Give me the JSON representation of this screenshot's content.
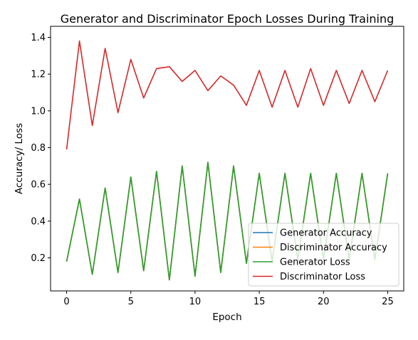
{
  "chart_data": {
    "type": "line",
    "title": "Generator and Discriminator Epoch Losses During Training",
    "xlabel": "Epoch",
    "ylabel": "Accuracy/ Loss",
    "xlim": [
      -1.25,
      26.25
    ],
    "ylim": [
      0.02,
      1.46
    ],
    "x_ticks": [
      0,
      5,
      10,
      15,
      20,
      25
    ],
    "y_ticks": [
      0.2,
      0.4,
      0.6,
      0.8,
      1.0,
      1.2,
      1.4
    ],
    "y_tick_labels": [
      "0.2",
      "0.4",
      "0.6",
      "0.8",
      "1.0",
      "1.2",
      "1.4"
    ],
    "grid": false,
    "legend_position": "bottom-right",
    "x": [
      0,
      1,
      2,
      3,
      4,
      5,
      6,
      7,
      8,
      9,
      10,
      11,
      12,
      13,
      14,
      15,
      16,
      17,
      18,
      19,
      20,
      21,
      22,
      23,
      24,
      25
    ],
    "series": [
      {
        "name": "Generator Accuracy",
        "color": "#1f77b4",
        "values": [
          0.18,
          0.52,
          0.11,
          0.58,
          0.12,
          0.64,
          0.13,
          0.67,
          0.08,
          0.7,
          0.1,
          0.72,
          0.12,
          0.7,
          0.17,
          0.66,
          0.18,
          0.66,
          0.19,
          0.66,
          0.19,
          0.66,
          0.19,
          0.66,
          0.19,
          0.66
        ]
      },
      {
        "name": "Discriminator Accuracy",
        "color": "#ff7f0e",
        "values": [
          0.18,
          0.52,
          0.11,
          0.58,
          0.12,
          0.64,
          0.13,
          0.67,
          0.08,
          0.7,
          0.1,
          0.72,
          0.12,
          0.7,
          0.17,
          0.66,
          0.18,
          0.66,
          0.19,
          0.66,
          0.19,
          0.66,
          0.19,
          0.66,
          0.19,
          0.66
        ]
      },
      {
        "name": "Generator Loss",
        "color": "#2ca02c",
        "values": [
          0.18,
          0.52,
          0.11,
          0.58,
          0.12,
          0.64,
          0.13,
          0.67,
          0.08,
          0.7,
          0.1,
          0.72,
          0.12,
          0.7,
          0.17,
          0.66,
          0.18,
          0.66,
          0.19,
          0.66,
          0.19,
          0.66,
          0.19,
          0.66,
          0.19,
          0.66
        ]
      },
      {
        "name": "Discriminator Loss",
        "color": "#d62728",
        "values": [
          0.79,
          1.38,
          0.92,
          1.34,
          0.99,
          1.28,
          1.07,
          1.23,
          1.24,
          1.16,
          1.22,
          1.11,
          1.19,
          1.14,
          1.03,
          1.22,
          1.02,
          1.22,
          1.02,
          1.23,
          1.03,
          1.22,
          1.04,
          1.22,
          1.05,
          1.22
        ]
      }
    ]
  }
}
